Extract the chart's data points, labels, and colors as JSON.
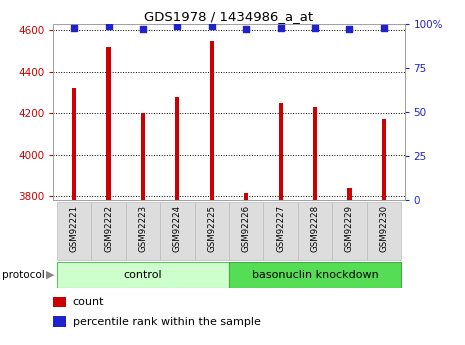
{
  "title": "GDS1978 / 1434986_a_at",
  "samples": [
    "GSM92221",
    "GSM92222",
    "GSM92223",
    "GSM92224",
    "GSM92225",
    "GSM92226",
    "GSM92227",
    "GSM92228",
    "GSM92229",
    "GSM92230"
  ],
  "counts": [
    4320,
    4520,
    4200,
    4280,
    4550,
    3815,
    4250,
    4230,
    3840,
    4170
  ],
  "percentile_ranks": [
    98,
    99,
    97,
    99,
    99,
    97,
    98,
    98,
    97,
    98
  ],
  "ylim_left": [
    3780,
    4630
  ],
  "ylim_right": [
    0,
    100
  ],
  "yticks_left": [
    3800,
    4000,
    4200,
    4400,
    4600
  ],
  "yticks_right": [
    0,
    25,
    50,
    75,
    100
  ],
  "control_count": 5,
  "knockdown_count": 5,
  "control_label": "control",
  "knockdown_label": "basonuclin knockdown",
  "protocol_label": "protocol",
  "bar_color": "#cc0000",
  "dot_color": "#2222cc",
  "bg_color": "#ffffff",
  "control_bg": "#ccffcc",
  "knockdown_bg": "#55dd55",
  "sample_bg": "#dddddd",
  "left_tick_color": "#cc0000",
  "right_tick_color": "#2222cc",
  "bar_width": 0.12
}
